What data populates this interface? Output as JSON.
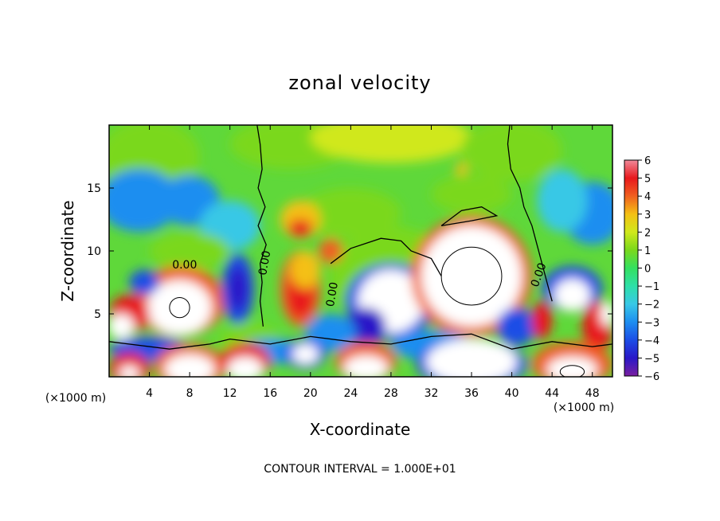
{
  "chart_data": {
    "type": "heatmap",
    "title": "zonal velocity",
    "xlabel": "X-coordinate",
    "ylabel": "Z-coordinate",
    "x_unit": "(×1000 m)",
    "z_unit": "(×1000 m)",
    "xlim": [
      0,
      50
    ],
    "ylim": [
      0,
      20
    ],
    "x_ticks": [
      4,
      8,
      12,
      16,
      20,
      24,
      28,
      32,
      36,
      40,
      44,
      48
    ],
    "y_ticks": [
      5,
      10,
      15
    ],
    "colorbar": {
      "ticks": [
        6,
        5,
        4,
        3,
        2,
        1,
        0,
        -1,
        -2,
        -3,
        -4,
        -5,
        -6
      ],
      "range": [
        -6,
        6
      ]
    },
    "contour_labels": [
      {
        "text": "0.00",
        "x": 7.5,
        "z": 8.6,
        "rotate": 0
      },
      {
        "text": "0.00",
        "x": 15.8,
        "z": 9.0,
        "rotate": -80
      },
      {
        "text": "0.00",
        "x": 22.5,
        "z": 6.5,
        "rotate": -80
      },
      {
        "text": "0.00",
        "x": 43.0,
        "z": 8.0,
        "rotate": -70
      }
    ],
    "footer": "CONTOUR INTERVAL = 1.000E+01"
  },
  "colors": {
    "ramp": [
      "#7a1fa0",
      "#2a18c8",
      "#1c4de6",
      "#1e8ef0",
      "#38c8e6",
      "#2ee0a8",
      "#34e060",
      "#7ad81c",
      "#d0e81c",
      "#f4c014",
      "#f06020",
      "#e8181c",
      "#f08a9a"
    ],
    "white": "#ffffff"
  }
}
